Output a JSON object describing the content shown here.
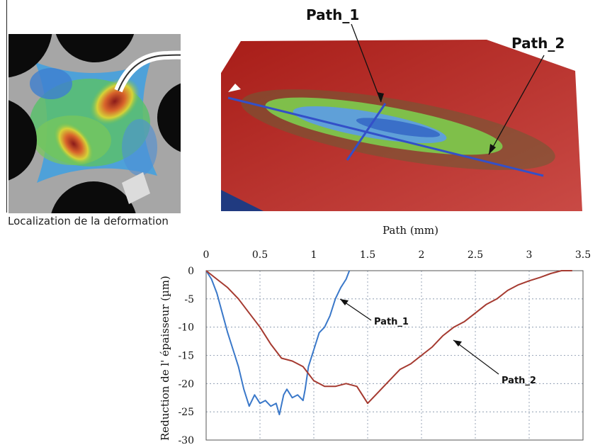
{
  "figure": {
    "caption": "Localization de la deformation",
    "surface_labels": [
      "Path_1",
      "Path_2"
    ]
  },
  "colors": {
    "path_1": "#3a78c9",
    "path_2": "#a53a30",
    "surface": "#b3241d",
    "grid": "#7f8fa6"
  },
  "chart_data": {
    "type": "line",
    "title": "",
    "xlabel": "Path (mm)",
    "ylabel": "Reduction de l' épaisseur (µm)",
    "xlim": [
      0,
      3.5
    ],
    "ylim": [
      -30,
      0
    ],
    "x_ticks": [
      "0",
      "0.5",
      "1",
      "1.5",
      "2",
      "2.5",
      "3",
      "3.5"
    ],
    "y_ticks": [
      "0",
      "-5",
      "-10",
      "-15",
      "-20",
      "-25",
      "-30"
    ],
    "grid": true,
    "x_axis_position": "top",
    "series": [
      {
        "name": "Path_1",
        "color": "#3a78c9",
        "x": [
          0,
          0.05,
          0.1,
          0.15,
          0.2,
          0.25,
          0.3,
          0.35,
          0.4,
          0.45,
          0.5,
          0.55,
          0.6,
          0.65,
          0.68,
          0.72,
          0.75,
          0.8,
          0.85,
          0.9,
          0.92,
          0.95,
          1.0,
          1.05,
          1.1,
          1.15,
          1.2,
          1.25,
          1.3,
          1.33
        ],
        "y": [
          0,
          -1.5,
          -4,
          -7.5,
          -11,
          -14,
          -17,
          -21,
          -24,
          -22,
          -23.5,
          -23,
          -24,
          -23.5,
          -25.5,
          -22,
          -21,
          -22.5,
          -22,
          -23,
          -21,
          -17,
          -14,
          -11,
          -10,
          -8,
          -5,
          -3,
          -1.5,
          0
        ]
      },
      {
        "name": "Path_2",
        "color": "#a53a30",
        "x": [
          0,
          0.1,
          0.2,
          0.3,
          0.4,
          0.5,
          0.6,
          0.7,
          0.8,
          0.9,
          1.0,
          1.1,
          1.2,
          1.3,
          1.4,
          1.5,
          1.6,
          1.7,
          1.8,
          1.9,
          2.0,
          2.1,
          2.2,
          2.3,
          2.4,
          2.5,
          2.6,
          2.7,
          2.8,
          2.9,
          3.0,
          3.1,
          3.2,
          3.3,
          3.4
        ],
        "y": [
          0,
          -1.5,
          -3,
          -5,
          -7.5,
          -10,
          -13,
          -15.5,
          -16,
          -17,
          -19.5,
          -20.5,
          -20.5,
          -20,
          -20.5,
          -23.5,
          -21.5,
          -19.5,
          -17.5,
          -16.5,
          -15,
          -13.5,
          -11.5,
          -10,
          -9,
          -7.5,
          -6,
          -5,
          -3.5,
          -2.5,
          -1.8,
          -1.2,
          -0.5,
          0,
          0
        ]
      }
    ],
    "annotations": [
      "Path_1",
      "Path_2"
    ]
  }
}
